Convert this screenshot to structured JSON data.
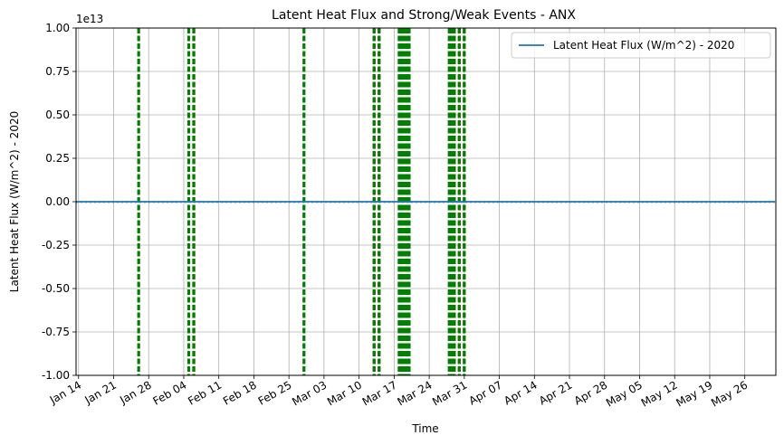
{
  "chart_data": {
    "type": "line",
    "title": "Latent Heat Flux and Strong/Weak Events - ANX",
    "xlabel": "Time",
    "ylabel": "Latent Heat Flux (W/m^2) - 2020",
    "y_offset_label": "1e13",
    "ylim": [
      -1.0,
      1.0
    ],
    "y_ticks": [
      "-1.00",
      "-0.75",
      "-0.50",
      "-0.25",
      "0.00",
      "0.25",
      "0.50",
      "0.75",
      "1.00"
    ],
    "xlim": [
      "2020-01-13",
      "2020-06-01"
    ],
    "x_ticks": [
      {
        "date": "2020-01-14",
        "label": "Jan 14"
      },
      {
        "date": "2020-01-21",
        "label": "Jan 21"
      },
      {
        "date": "2020-01-28",
        "label": "Jan 28"
      },
      {
        "date": "2020-02-04",
        "label": "Feb 04"
      },
      {
        "date": "2020-02-11",
        "label": "Feb 11"
      },
      {
        "date": "2020-02-18",
        "label": "Feb 18"
      },
      {
        "date": "2020-02-25",
        "label": "Feb 25"
      },
      {
        "date": "2020-03-03",
        "label": "Mar 03"
      },
      {
        "date": "2020-03-10",
        "label": "Mar 10"
      },
      {
        "date": "2020-03-17",
        "label": "Mar 17"
      },
      {
        "date": "2020-03-24",
        "label": "Mar 24"
      },
      {
        "date": "2020-03-31",
        "label": "Mar 31"
      },
      {
        "date": "2020-04-07",
        "label": "Apr 07"
      },
      {
        "date": "2020-04-14",
        "label": "Apr 14"
      },
      {
        "date": "2020-04-21",
        "label": "Apr 21"
      },
      {
        "date": "2020-04-28",
        "label": "Apr 28"
      },
      {
        "date": "2020-05-05",
        "label": "May 05"
      },
      {
        "date": "2020-05-12",
        "label": "May 12"
      },
      {
        "date": "2020-05-19",
        "label": "May 19"
      },
      {
        "date": "2020-05-26",
        "label": "May 26"
      }
    ],
    "grid": true,
    "legend": {
      "position": "top-right",
      "entries": [
        "Latent Heat Flux (W/m^2) - 2020"
      ]
    },
    "series": [
      {
        "name": "Latent Heat Flux (W/m^2) - 2020",
        "color": "#1f77b4",
        "x_start": "2020-01-13",
        "x_end": "2020-06-01",
        "value": 0
      }
    ],
    "event_lines": {
      "strong_color": "#ff0000",
      "weak_color": "#008000",
      "style": "dashed",
      "strong": [
        "2020-02-06",
        "2020-03-13",
        "2020-03-14",
        "2020-03-29",
        "2020-03-30",
        "2020-03-31"
      ],
      "weak": [
        "2020-01-26",
        "2020-02-05",
        "2020-02-06",
        "2020-02-28",
        "2020-03-13",
        "2020-03-14",
        "2020-03-18",
        "2020-03-18T06",
        "2020-03-18T12",
        "2020-03-18T18",
        "2020-03-19",
        "2020-03-19T06",
        "2020-03-19T12",
        "2020-03-19T18",
        "2020-03-20",
        "2020-03-28",
        "2020-03-28T12",
        "2020-03-29",
        "2020-03-30",
        "2020-03-31"
      ]
    }
  }
}
